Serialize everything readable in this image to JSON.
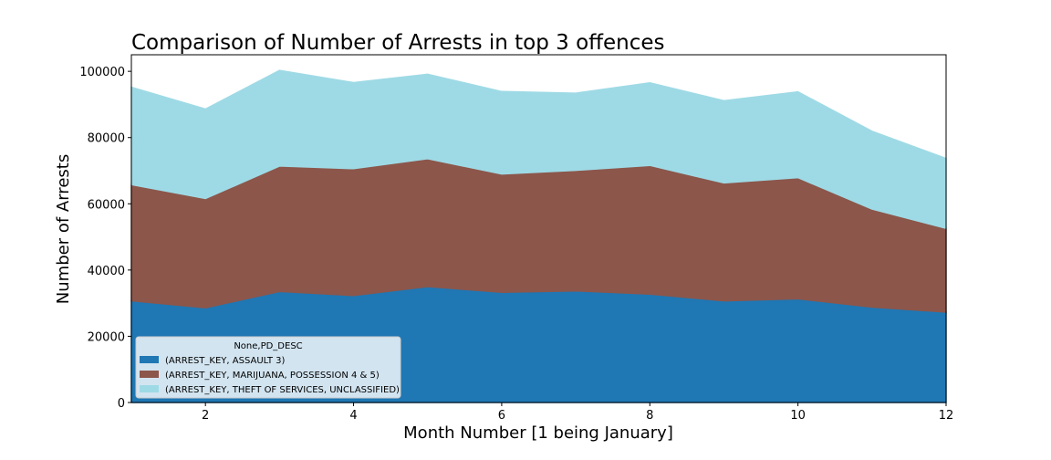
{
  "chart_data": {
    "type": "area",
    "stacked": true,
    "title": "Comparison of Number of Arrests in top 3 offences",
    "xlabel": "Month Number [1 being January]",
    "ylabel": "Number of Arrests",
    "x": [
      1,
      2,
      3,
      4,
      5,
      6,
      7,
      8,
      9,
      10,
      11,
      12
    ],
    "xlim": [
      1,
      12
    ],
    "ylim": [
      0,
      105000
    ],
    "xticks": [
      2,
      4,
      6,
      8,
      10,
      12
    ],
    "yticks": [
      0,
      20000,
      40000,
      60000,
      80000,
      100000
    ],
    "grid": false,
    "legend": {
      "title": "None,PD_DESC",
      "position": "lower-left"
    },
    "series": [
      {
        "name": "(ARREST_KEY, ASSAULT 3)",
        "color": "#1f77b4",
        "values": [
          30700,
          28600,
          33500,
          32300,
          35000,
          33300,
          33700,
          32700,
          30700,
          31300,
          28800,
          27300
        ]
      },
      {
        "name": "(ARREST_KEY, MARIJUANA, POSSESSION 4 & 5)",
        "color": "#8c564b",
        "values": [
          35100,
          33000,
          37900,
          38300,
          38600,
          35700,
          36400,
          38900,
          35600,
          36600,
          29600,
          25300
        ]
      },
      {
        "name": "(ARREST_KEY, THEFT OF SERVICES, UNCLASSIFIED)",
        "color": "#9edae5",
        "values": [
          29400,
          27000,
          28900,
          26000,
          25500,
          24900,
          23300,
          24900,
          24800,
          25900,
          23500,
          21100
        ]
      }
    ]
  }
}
